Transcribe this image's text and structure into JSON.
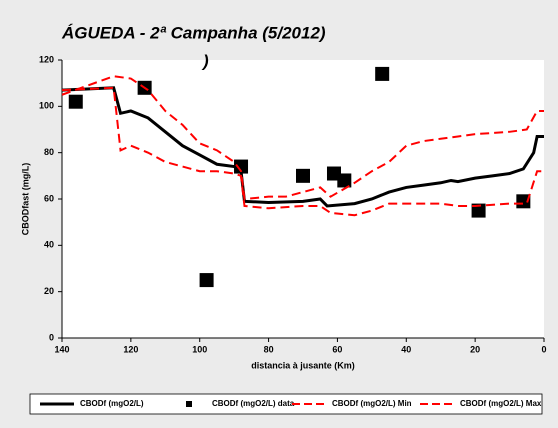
{
  "chart_data": {
    "type": "line",
    "title": "ÁGUEDA - 2ª Campanha (5/2012)",
    "annotation": ")",
    "xlabel": "distancia à jusante (Km)",
    "ylabel": "CBODfast (mg/L)",
    "xlim": [
      140,
      0
    ],
    "xticks": [
      140,
      120,
      100,
      80,
      60,
      40,
      20,
      0
    ],
    "ylim": [
      0,
      120
    ],
    "yticks": [
      0,
      20,
      40,
      60,
      80,
      100,
      120
    ],
    "grid": false,
    "legend": "bottom",
    "series": [
      {
        "name": "CBODf (mgO2/L)",
        "color": "#000000",
        "mode": "line",
        "dash": false,
        "x": [
          140,
          125,
          123,
          120,
          115,
          110,
          105,
          100,
          95,
          90,
          88,
          87,
          80,
          70,
          65,
          63,
          55,
          50,
          45,
          40,
          35,
          30,
          27,
          25,
          20,
          15,
          10,
          6,
          3,
          2,
          0
        ],
        "values": [
          107,
          108,
          97,
          98,
          95,
          89,
          83,
          79,
          75,
          74,
          72,
          59,
          58.5,
          59,
          60,
          57,
          58,
          60,
          63,
          65,
          66,
          67,
          68,
          67.5,
          69,
          70,
          71,
          73,
          80,
          87,
          87
        ]
      },
      {
        "name": "CBODf (mgO2/L) data",
        "color": "#000000",
        "mode": "markers",
        "x": [
          136,
          116,
          98,
          88,
          70,
          61,
          58,
          47,
          19,
          6
        ],
        "values": [
          102,
          108,
          25,
          74,
          70,
          71,
          68,
          114,
          55,
          59
        ]
      },
      {
        "name": "CBODf (mgO2/L) Min",
        "color": "#ff0000",
        "mode": "line",
        "dash": true,
        "x": [
          140,
          125,
          123,
          120,
          115,
          110,
          105,
          100,
          95,
          90,
          88,
          87,
          80,
          70,
          65,
          62,
          55,
          50,
          45,
          35,
          30,
          25,
          20,
          10,
          5,
          2,
          0
        ],
        "values": [
          107,
          108,
          81,
          83,
          80,
          76,
          74,
          72,
          72,
          71,
          70,
          57,
          56,
          57,
          57,
          54,
          53,
          55,
          58,
          58,
          58,
          57,
          57,
          58,
          58,
          72,
          72
        ]
      },
      {
        "name": "CBODf (mgO2/L) Max",
        "color": "#ff0000",
        "mode": "line",
        "dash": true,
        "x": [
          140,
          125,
          120,
          115,
          110,
          105,
          100,
          95,
          90,
          88,
          87,
          80,
          75,
          70,
          65,
          62,
          55,
          50,
          45,
          40,
          35,
          30,
          25,
          20,
          10,
          5,
          2,
          0
        ],
        "values": [
          105,
          113,
          112,
          107,
          98,
          92,
          84,
          81,
          76,
          72,
          60,
          61,
          61,
          63,
          65,
          61,
          67,
          72,
          76,
          83,
          85,
          86,
          87,
          88,
          89,
          90,
          98,
          98
        ]
      }
    ]
  }
}
